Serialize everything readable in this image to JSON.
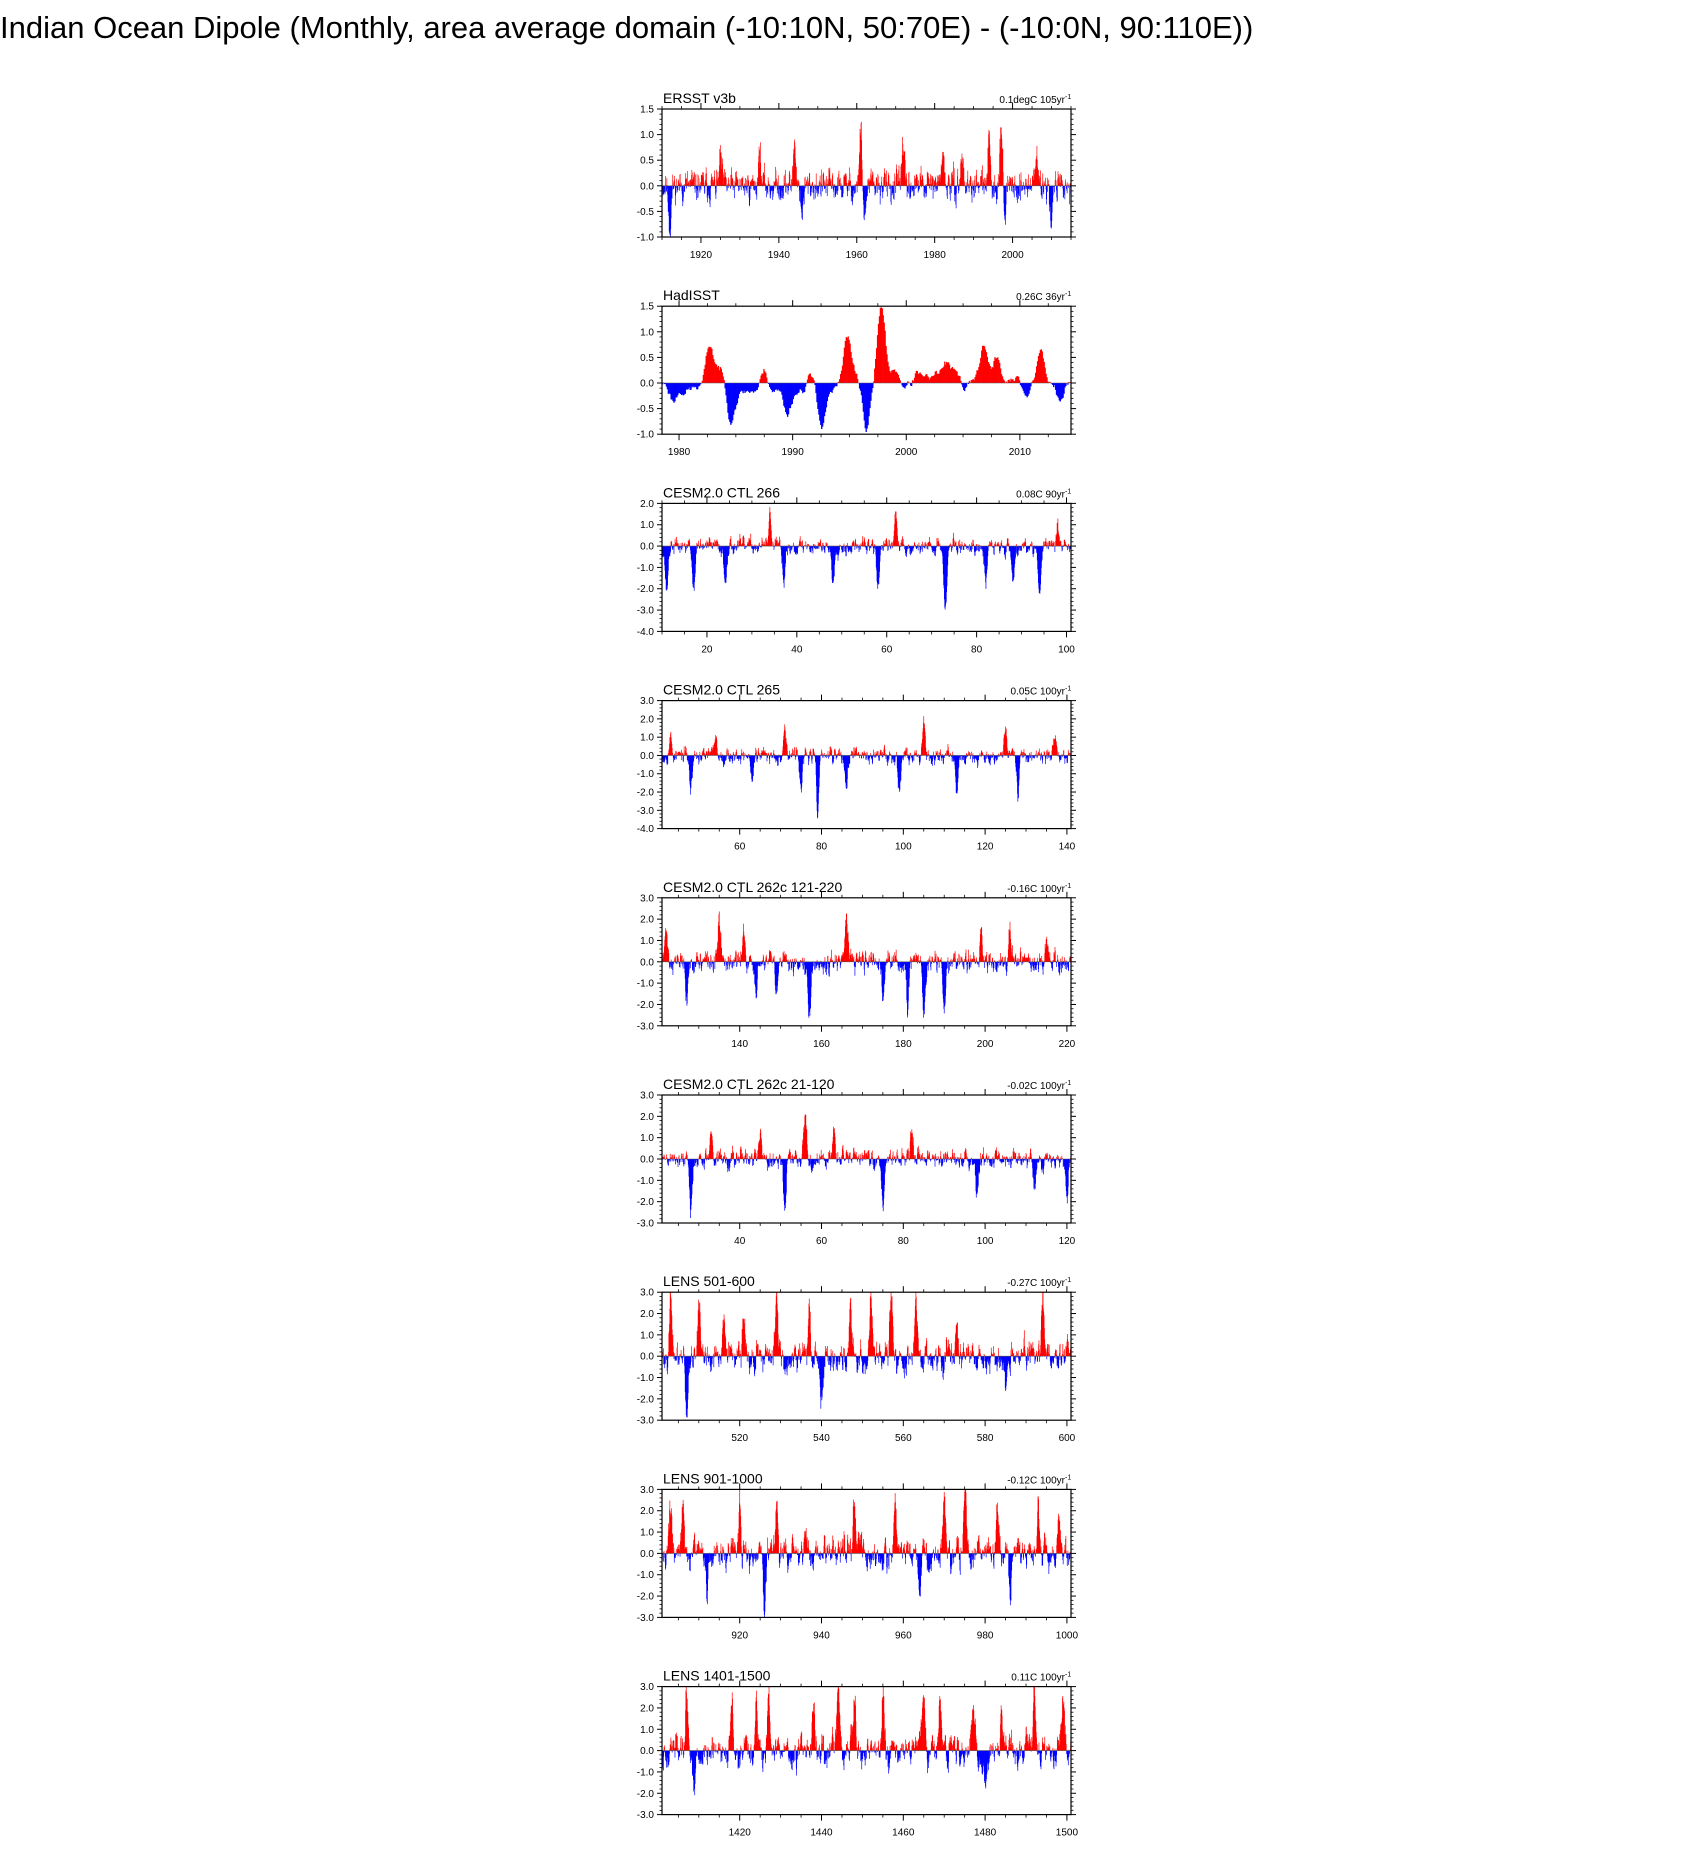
{
  "title": "Indian Ocean Dipole (Monthly, area average domain (-10:10N, 50:70E) - (-10:0N, 90:110E))",
  "colors": {
    "positive": "#ff0000",
    "negative": "#0000ff",
    "axis": "#000000"
  },
  "chart_data": [
    {
      "type": "bar",
      "title": "ERSST v3b",
      "trend_label": "0.1degC 105yr",
      "trend_sup": "-1",
      "xlim": [
        1910,
        2015
      ],
      "xticks": [
        1920,
        1940,
        1960,
        1980,
        2000
      ],
      "ylim": [
        -1.0,
        1.5
      ],
      "yticks": [
        -1.0,
        -0.5,
        0.0,
        0.5,
        1.0,
        1.5
      ],
      "yticklabels": [
        "-1.0",
        "-0.5",
        "0.0",
        "0.5",
        "1.0",
        "1.5"
      ],
      "series": {
        "amplitude": 0.32,
        "persistence": 0.55,
        "seed": 11,
        "events": [
          [
            1912,
            -0.8
          ],
          [
            1925,
            0.55
          ],
          [
            1935,
            0.7
          ],
          [
            1944,
            0.9
          ],
          [
            1946,
            -0.55
          ],
          [
            1961,
            1.1
          ],
          [
            1962,
            -0.7
          ],
          [
            1972,
            0.8
          ],
          [
            1982,
            0.7
          ],
          [
            1987,
            0.6
          ],
          [
            1994,
            0.85
          ],
          [
            1997,
            1.3
          ],
          [
            1998,
            -0.55
          ],
          [
            2006,
            0.75
          ],
          [
            2010,
            -0.65
          ]
        ]
      }
    },
    {
      "type": "bar",
      "title": "HadISST",
      "trend_label": "0.26C 36yr",
      "trend_sup": "-1",
      "xlim": [
        1978.5,
        2014.5
      ],
      "xticks": [
        1980,
        1990,
        2000,
        2010
      ],
      "ylim": [
        -1.0,
        1.5
      ],
      "yticks": [
        -1.0,
        -0.5,
        0.0,
        0.5,
        1.0,
        1.5
      ],
      "yticklabels": [
        "-1.0",
        "-0.5",
        "0.0",
        "0.5",
        "1.0",
        "1.5"
      ],
      "series": {
        "amplitude": 0.12,
        "persistence": 0.97,
        "seed": 23,
        "events": [
          [
            1979.5,
            -0.3
          ],
          [
            1982.7,
            0.7
          ],
          [
            1983.5,
            0.3
          ],
          [
            1984.5,
            -0.6
          ],
          [
            1987.5,
            0.3
          ],
          [
            1989.5,
            -0.5
          ],
          [
            1991.5,
            0.35
          ],
          [
            1992.5,
            -0.8
          ],
          [
            1994.8,
            0.85
          ],
          [
            1996.5,
            -0.95
          ],
          [
            1997.8,
            1.45
          ],
          [
            1999,
            0.25
          ],
          [
            2001,
            0.25
          ],
          [
            2003.5,
            0.25
          ],
          [
            2005,
            -0.3
          ],
          [
            2006.8,
            0.7
          ],
          [
            2008,
            0.4
          ],
          [
            2010.5,
            -0.3
          ],
          [
            2011.8,
            0.6
          ],
          [
            2013.5,
            -0.3
          ]
        ]
      }
    },
    {
      "type": "bar",
      "title": "CESM2.0 CTL 266",
      "trend_label": "0.08C 90yr",
      "trend_sup": "-1",
      "xlim": [
        10,
        101
      ],
      "xticks": [
        20,
        40,
        60,
        80,
        100
      ],
      "ylim": [
        -4.0,
        2.0
      ],
      "yticks": [
        -4.0,
        -3.0,
        -2.0,
        -1.0,
        0.0,
        1.0,
        2.0
      ],
      "yticklabels": [
        "-4.0",
        "-3.0",
        "-2.0",
        "-1.0",
        "0.0",
        "1.0",
        "2.0"
      ],
      "series": {
        "amplitude": 0.4,
        "persistence": 0.6,
        "seed": 37,
        "events": [
          [
            11,
            -2.1
          ],
          [
            17,
            -2.0
          ],
          [
            24,
            -1.6
          ],
          [
            34,
            1.4
          ],
          [
            37,
            -1.8
          ],
          [
            48,
            -1.7
          ],
          [
            58,
            -1.9
          ],
          [
            62,
            1.4
          ],
          [
            73,
            -3.0
          ],
          [
            82,
            -1.8
          ],
          [
            88,
            -1.6
          ],
          [
            94,
            -2.2
          ],
          [
            98,
            1.2
          ]
        ]
      }
    },
    {
      "type": "bar",
      "title": "CESM2.0 CTL 265",
      "trend_label": "0.05C 100yr",
      "trend_sup": "-1",
      "xlim": [
        41,
        141
      ],
      "xticks": [
        60,
        80,
        100,
        120,
        140
      ],
      "ylim": [
        -4.0,
        3.0
      ],
      "yticks": [
        -4.0,
        -3.0,
        -2.0,
        -1.0,
        0.0,
        1.0,
        2.0,
        3.0
      ],
      "yticklabels": [
        "-4.0",
        "-3.0",
        "-2.0",
        "-1.0",
        "0.0",
        "1.0",
        "2.0",
        "3.0"
      ],
      "series": {
        "amplitude": 0.45,
        "persistence": 0.6,
        "seed": 53,
        "events": [
          [
            43,
            1.0
          ],
          [
            48,
            -1.9
          ],
          [
            54,
            1.1
          ],
          [
            63,
            -1.5
          ],
          [
            71,
            1.5
          ],
          [
            75,
            -1.6
          ],
          [
            79,
            -3.0
          ],
          [
            86,
            -1.9
          ],
          [
            99,
            -1.8
          ],
          [
            105,
            2.1
          ],
          [
            113,
            -2.3
          ],
          [
            125,
            1.7
          ],
          [
            128,
            -1.9
          ],
          [
            137,
            1.0
          ]
        ]
      }
    },
    {
      "type": "bar",
      "title": "CESM2.0 CTL 262c 121-220",
      "trend_label": "-0.16C 100yr",
      "trend_sup": "-1",
      "xlim": [
        121,
        221
      ],
      "xticks": [
        140,
        160,
        180,
        200,
        220
      ],
      "ylim": [
        -3.0,
        3.0
      ],
      "yticks": [
        -3.0,
        -2.0,
        -1.0,
        0.0,
        1.0,
        2.0,
        3.0
      ],
      "yticklabels": [
        "-3.0",
        "-2.0",
        "-1.0",
        "0.0",
        "1.0",
        "2.0",
        "3.0"
      ],
      "series": {
        "amplitude": 0.5,
        "persistence": 0.6,
        "seed": 71,
        "events": [
          [
            122,
            1.6
          ],
          [
            127,
            -1.9
          ],
          [
            135,
            1.9
          ],
          [
            141,
            1.5
          ],
          [
            144,
            -1.7
          ],
          [
            149,
            -1.8
          ],
          [
            157,
            -2.6
          ],
          [
            166,
            1.9
          ],
          [
            175,
            -1.8
          ],
          [
            181,
            -2.3
          ],
          [
            185,
            -2.4
          ],
          [
            190,
            -2.6
          ],
          [
            199,
            1.6
          ],
          [
            206,
            1.8
          ],
          [
            215,
            1.3
          ]
        ]
      }
    },
    {
      "type": "bar",
      "title": "CESM2.0 CTL 262c 21-120",
      "trend_label": "-0.02C 100yr",
      "trend_sup": "-1",
      "xlim": [
        21,
        121
      ],
      "xticks": [
        40,
        60,
        80,
        100,
        120
      ],
      "ylim": [
        -3.0,
        3.0
      ],
      "yticks": [
        -3.0,
        -2.0,
        -1.0,
        0.0,
        1.0,
        2.0,
        3.0
      ],
      "yticklabels": [
        "-3.0",
        "-2.0",
        "-1.0",
        "0.0",
        "1.0",
        "2.0",
        "3.0"
      ],
      "series": {
        "amplitude": 0.45,
        "persistence": 0.6,
        "seed": 89,
        "events": [
          [
            28,
            -2.6
          ],
          [
            33,
            1.3
          ],
          [
            45,
            1.3
          ],
          [
            51,
            -2.4
          ],
          [
            56,
            2.2
          ],
          [
            63,
            1.4
          ],
          [
            75,
            -2.4
          ],
          [
            82,
            1.4
          ],
          [
            98,
            -1.6
          ],
          [
            112,
            -1.5
          ],
          [
            120,
            -2.0
          ]
        ]
      }
    },
    {
      "type": "bar",
      "title": "LENS 501-600",
      "trend_label": "-0.27C 100yr",
      "trend_sup": "-1",
      "xlim": [
        501,
        601
      ],
      "xticks": [
        520,
        540,
        560,
        580,
        600
      ],
      "ylim": [
        -3.0,
        3.0
      ],
      "yticks": [
        -3.0,
        -2.0,
        -1.0,
        0.0,
        1.0,
        2.0,
        3.0
      ],
      "yticklabels": [
        "-3.0",
        "-2.0",
        "-1.0",
        "0.0",
        "1.0",
        "2.0",
        "3.0"
      ],
      "series": {
        "amplitude": 0.75,
        "persistence": 0.7,
        "seed": 101,
        "events": [
          [
            503,
            2.5
          ],
          [
            507,
            -2.6
          ],
          [
            510,
            2.5
          ],
          [
            516,
            2.4
          ],
          [
            521,
            1.8
          ],
          [
            529,
            2.7
          ],
          [
            537,
            2.9
          ],
          [
            540,
            -2.2
          ],
          [
            547,
            2.4
          ],
          [
            552,
            2.4
          ],
          [
            557,
            2.9
          ],
          [
            563,
            2.3
          ],
          [
            573,
            2.1
          ],
          [
            585,
            -1.9
          ],
          [
            594,
            2.6
          ]
        ]
      }
    },
    {
      "type": "bar",
      "title": "LENS 901-1000",
      "trend_label": "-0.12C 100yr",
      "trend_sup": "-1",
      "xlim": [
        901,
        1001
      ],
      "xticks": [
        920,
        940,
        960,
        980,
        1000
      ],
      "ylim": [
        -3.0,
        3.0
      ],
      "yticks": [
        -3.0,
        -2.0,
        -1.0,
        0.0,
        1.0,
        2.0,
        3.0
      ],
      "yticklabels": [
        "-3.0",
        "-2.0",
        "-1.0",
        "0.0",
        "1.0",
        "2.0",
        "3.0"
      ],
      "series": {
        "amplitude": 0.75,
        "persistence": 0.7,
        "seed": 131,
        "events": [
          [
            903,
            2.3
          ],
          [
            906,
            2.4
          ],
          [
            912,
            -1.9
          ],
          [
            920,
            2.5
          ],
          [
            926,
            -2.2
          ],
          [
            929,
            2.4
          ],
          [
            948,
            2.3
          ],
          [
            958,
            2.0
          ],
          [
            964,
            -2.0
          ],
          [
            970,
            2.4
          ],
          [
            975,
            2.9
          ],
          [
            983,
            2.4
          ],
          [
            986,
            -2.0
          ],
          [
            993,
            2.3
          ],
          [
            998,
            2.0
          ]
        ]
      }
    },
    {
      "type": "bar",
      "title": "LENS 1401-1500",
      "trend_label": "0.11C 100yr",
      "trend_sup": "-1",
      "xlim": [
        1401,
        1501
      ],
      "xticks": [
        1420,
        1440,
        1460,
        1480,
        1500
      ],
      "ylim": [
        -3.0,
        3.0
      ],
      "yticks": [
        -3.0,
        -2.0,
        -1.0,
        0.0,
        1.0,
        2.0,
        3.0
      ],
      "yticklabels": [
        "-3.0",
        "-2.0",
        "-1.0",
        "0.0",
        "1.0",
        "2.0",
        "3.0"
      ],
      "series": {
        "amplitude": 0.75,
        "persistence": 0.7,
        "seed": 157,
        "events": [
          [
            1407,
            2.6
          ],
          [
            1409,
            -1.9
          ],
          [
            1418,
            2.3
          ],
          [
            1424,
            2.5
          ],
          [
            1427,
            2.6
          ],
          [
            1438,
            2.1
          ],
          [
            1444,
            2.6
          ],
          [
            1448,
            2.2
          ],
          [
            1455,
            2.8
          ],
          [
            1465,
            2.3
          ],
          [
            1469,
            2.6
          ],
          [
            1477,
            2.6
          ],
          [
            1480,
            -1.9
          ],
          [
            1484,
            2.4
          ],
          [
            1492,
            2.3
          ],
          [
            1499,
            2.3
          ]
        ]
      }
    }
  ]
}
